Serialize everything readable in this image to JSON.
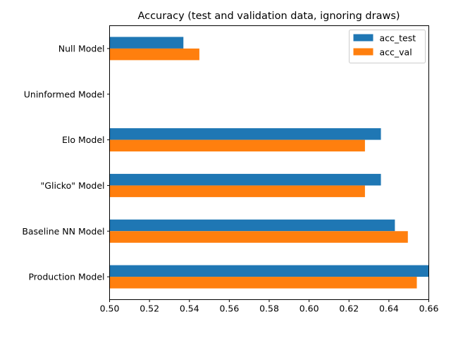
{
  "chart_data": {
    "type": "bar",
    "orientation": "horizontal",
    "title": "Accuracy (test and validation data, ignoring draws)",
    "xlabel": "",
    "ylabel": "",
    "xlim": [
      0.5,
      0.66
    ],
    "xticks": [
      "0.50",
      "0.52",
      "0.54",
      "0.56",
      "0.58",
      "0.60",
      "0.62",
      "0.64",
      "0.66"
    ],
    "categories": [
      "Null Model",
      "Uninformed Model",
      "Elo Model",
      "\"Glicko\" Model",
      "Baseline NN Model",
      "Production Model"
    ],
    "series": [
      {
        "name": "acc_test",
        "color": "#1f77b4",
        "values": [
          0.537,
          0.5,
          0.636,
          0.636,
          0.643,
          0.66
        ]
      },
      {
        "name": "acc_val",
        "color": "#ff7f0e",
        "values": [
          0.545,
          0.5,
          0.628,
          0.628,
          0.6495,
          0.654
        ]
      }
    ],
    "legend_position": "top-right",
    "grid": false
  }
}
